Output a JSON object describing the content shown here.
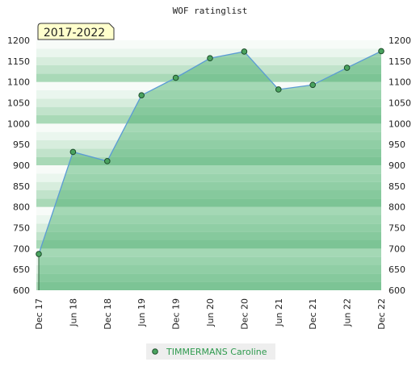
{
  "chart_data": {
    "type": "area",
    "title": "WOF ratinglist",
    "period_label": "2017-2022",
    "x": [
      "Dec 17",
      "Jun 18",
      "Dec 18",
      "Jun 19",
      "Dec 19",
      "Jun 20",
      "Dec 20",
      "Jun 21",
      "Dec 21",
      "Jun 22",
      "Dec 22"
    ],
    "series": [
      {
        "name": "TIMMERMANS Caroline",
        "values": [
          687,
          932,
          910,
          1068,
          1110,
          1157,
          1173,
          1082,
          1093,
          1134,
          1174
        ]
      }
    ],
    "ylim": [
      600,
      1200
    ],
    "yticks": [
      600,
      650,
      700,
      750,
      800,
      850,
      900,
      950,
      1000,
      1050,
      1100,
      1150,
      1200
    ],
    "xlabel": "",
    "ylabel": "",
    "grid": true,
    "legend_position": "bottom",
    "colors": {
      "line": "#5b9bd5",
      "area": "#7dc494",
      "marker": "#4aa35f",
      "badge_fill": "#ffffcc",
      "legend_text": "#2e9a4e"
    }
  }
}
